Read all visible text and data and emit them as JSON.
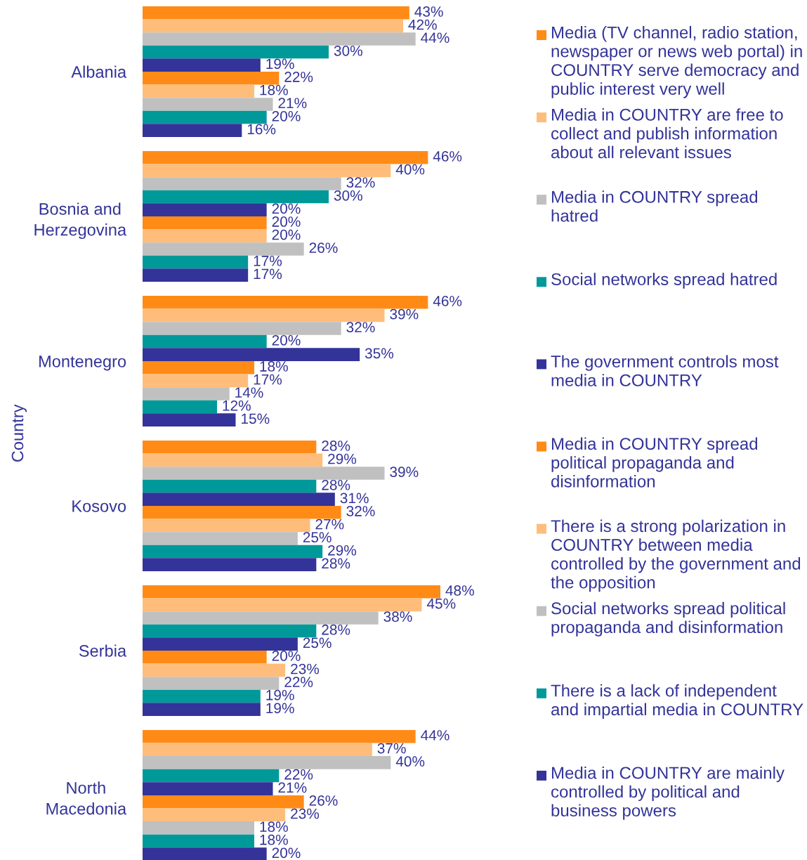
{
  "chart_data": {
    "type": "bar",
    "orientation": "horizontal",
    "ylabel": "Country",
    "tick_labels": "y",
    "legend": "right",
    "categories": [
      "Albania",
      "Bosnia and\nHerzegovina",
      "Montenegro",
      "Kosovo",
      "Serbia",
      "North\nMacedonia"
    ],
    "series": [
      {
        "name": "Media (TV channel, radio station,\nnewspaper or news web portal) in\nCOUNTRY serve democracy and\npublic interest very well",
        "color": "#ff8b16",
        "values": [
          43,
          46,
          46,
          28,
          48,
          44
        ],
        "value_labels": [
          "43%",
          "46%",
          "46%",
          "28%",
          "48%",
          "44%"
        ]
      },
      {
        "name": "Media in COUNTRY are free to\ncollect and publish information\nabout all relevant issues",
        "color": "#ffbd7b",
        "values": [
          42,
          40,
          39,
          29,
          45,
          37
        ],
        "value_labels": [
          "42%",
          "40%",
          "39%",
          "29%",
          "45%",
          "37%"
        ]
      },
      {
        "name": "Media in COUNTRY spread\nhatred",
        "color": "#c0c0c0",
        "values": [
          44,
          32,
          32,
          39,
          38,
          40
        ],
        "value_labels": [
          "44%",
          "32%",
          "32%",
          "39%",
          "38%",
          "40%"
        ]
      },
      {
        "name": "Social networks spread hatred",
        "color": "#009999",
        "values": [
          30,
          30,
          20,
          28,
          28,
          22
        ],
        "value_labels": [
          "30%",
          "30%",
          "20%",
          "28%",
          "28%",
          "22%"
        ]
      },
      {
        "name": "The government controls most\nmedia in COUNTRY",
        "color": "#333399",
        "values": [
          19,
          20,
          35,
          31,
          25,
          21
        ],
        "value_labels": [
          "19%",
          "20%",
          "35%",
          "31%",
          "25%",
          "21%"
        ]
      },
      {
        "name": "Media in COUNTRY spread\npolitical propaganda and\ndisinformation",
        "color": "#ff8b16",
        "values": [
          22,
          20,
          18,
          32,
          20,
          26
        ],
        "value_labels": [
          "22%",
          "20%",
          "18%",
          "32%",
          "20%",
          "26%"
        ]
      },
      {
        "name": "There is a strong polarization in\nCOUNTRY between media\ncontrolled by the government and\nthe opposition",
        "color": "#ffbd7b",
        "values": [
          18,
          20,
          17,
          27,
          23,
          23
        ],
        "value_labels": [
          "18%",
          "20%",
          "17%",
          "27%",
          "23%",
          "23%"
        ]
      },
      {
        "name": "Social networks spread political\npropaganda and disinformation",
        "color": "#c0c0c0",
        "values": [
          21,
          26,
          14,
          25,
          22,
          18
        ],
        "value_labels": [
          "21%",
          "26%",
          "14%",
          "25%",
          "22%",
          "18%"
        ]
      },
      {
        "name": "There is a lack of independent\nand impartial media in COUNTRY",
        "color": "#009999",
        "values": [
          20,
          17,
          12,
          29,
          19,
          18
        ],
        "value_labels": [
          "20%",
          "17%",
          "12%",
          "29%",
          "19%",
          "18%"
        ]
      },
      {
        "name": "Media in COUNTRY are mainly\ncontrolled by political and\nbusiness powers",
        "color": "#333399",
        "values": [
          16,
          17,
          15,
          28,
          19,
          20
        ],
        "value_labels": [
          "16%",
          "17%",
          "15%",
          "28%",
          "19%",
          "20%"
        ]
      }
    ]
  }
}
